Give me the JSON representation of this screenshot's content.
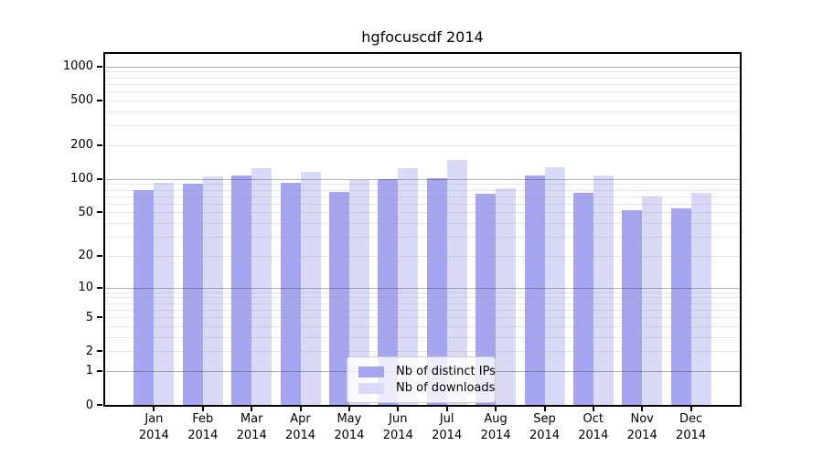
{
  "chart_data": {
    "type": "bar",
    "title": "hgfocuscdf 2014",
    "categories": [
      "Jan 2014",
      "Feb 2014",
      "Mar 2014",
      "Apr 2014",
      "May 2014",
      "Jun 2014",
      "Jul 2014",
      "Aug 2014",
      "Sep 2014",
      "Oct 2014",
      "Nov 2014",
      "Dec 2014"
    ],
    "series": [
      {
        "name": "Nb of distinct IPs",
        "color": "#a5a5f0",
        "values": [
          80,
          90,
          108,
          93,
          77,
          100,
          102,
          74,
          107,
          75,
          52,
          54
        ]
      },
      {
        "name": "Nb of downloads",
        "color": "#d9d9f8",
        "values": [
          92,
          105,
          125,
          116,
          97,
          125,
          148,
          83,
          127,
          108,
          70,
          75
        ]
      }
    ],
    "y_axis": {
      "scale": "log1p",
      "tick_labels": [
        "0",
        "1",
        "2",
        "5",
        "10",
        "20",
        "50",
        "100",
        "200",
        "500",
        "1000"
      ],
      "tick_values": [
        0,
        1,
        2,
        5,
        10,
        20,
        50,
        100,
        200,
        500,
        1000
      ],
      "major_grid_values": [
        1,
        10,
        100,
        1000
      ],
      "ylim": [
        0,
        1300
      ],
      "grid": "on"
    },
    "x_axis": {
      "year_line": "2014"
    },
    "legend": {
      "position": "lower-center",
      "entries": [
        "Nb of distinct IPs",
        "Nb of downloads"
      ]
    },
    "colors": {
      "bar_distinct_ips": "#a5a5f0",
      "bar_downloads": "#d9d9f8",
      "major_grid": "#b0b0b0",
      "minor_grid": "#e6e6e6",
      "axis": "#000000",
      "legend_border": "#cccccc"
    }
  }
}
